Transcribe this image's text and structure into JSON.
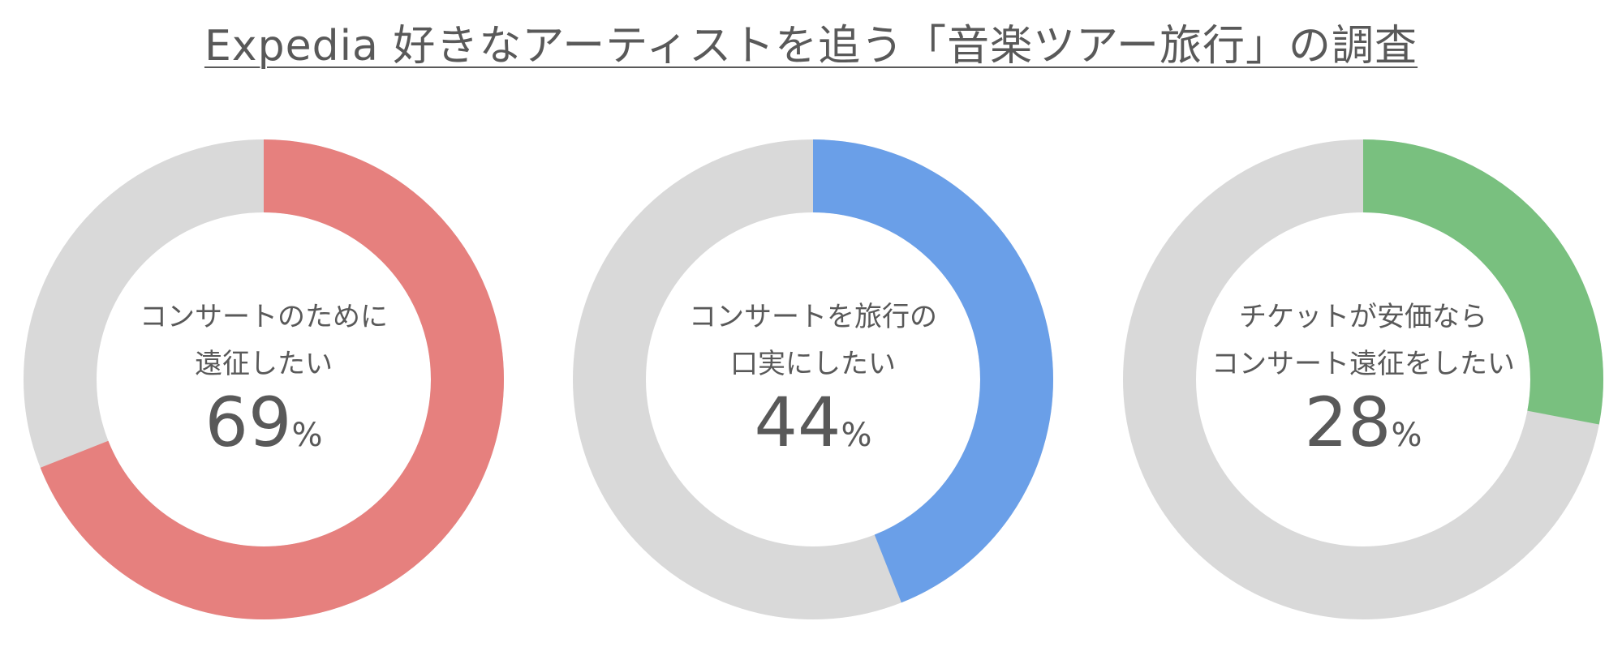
{
  "chart_data": {
    "type": "pie",
    "title": "Expedia 好きなアーティストを追う「音楽ツアー旅行」の調査",
    "charts": [
      {
        "label_lines": [
          "コンサートのために",
          "遠征したい"
        ],
        "value": 69,
        "value_text": "69",
        "unit": "%",
        "color": "#E6807E"
      },
      {
        "label_lines": [
          "コンサートを旅行の",
          "口実にしたい"
        ],
        "value": 44,
        "value_text": "44",
        "unit": "%",
        "color": "#6A9FE8"
      },
      {
        "label_lines": [
          "チケットが安価なら",
          "コンサート遠征をしたい"
        ],
        "value": 28,
        "value_text": "28",
        "unit": "%",
        "color": "#79C07F"
      }
    ],
    "remainder_color": "#D9D9D9"
  }
}
